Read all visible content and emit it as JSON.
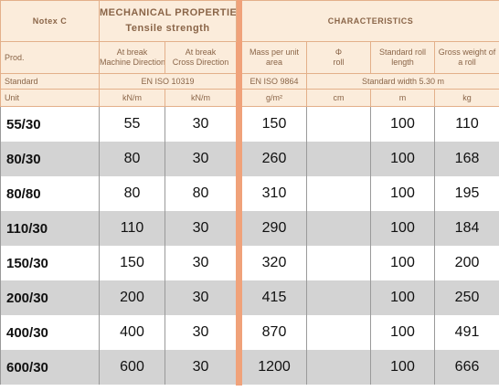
{
  "header": {
    "title": "Notex C",
    "mechanical": "MECHANICAL PROPERTIES",
    "tensile": "Tensile strength",
    "characteristics": "CHARACTERISTICS"
  },
  "columns": {
    "prod": "Prod.",
    "md": [
      "At break",
      "Machine Direction"
    ],
    "cd": [
      "At break",
      "Cross Direction"
    ],
    "mass": [
      "Mass per unit",
      "area"
    ],
    "phi": [
      "Φ",
      "roll"
    ],
    "length": [
      "Standard roll",
      "length"
    ],
    "weight": [
      "Gross weight of",
      "a roll"
    ]
  },
  "standard": {
    "label": "Standard",
    "tensile": "EN ISO 10319",
    "mass": "EN ISO 9864",
    "width": "Standard width 5.30 m"
  },
  "unit": {
    "label": "Unit",
    "md": "kN/m",
    "cd": "kN/m",
    "mass": "g/m²",
    "phi": "cm",
    "length": "m",
    "weight": "kg"
  },
  "rows": [
    {
      "prod": "55/30",
      "md": "55",
      "cd": "30",
      "mass": "150",
      "length": "100",
      "weight": "110"
    },
    {
      "prod": "80/30",
      "md": "80",
      "cd": "30",
      "mass": "260",
      "length": "100",
      "weight": "168"
    },
    {
      "prod": "80/80",
      "md": "80",
      "cd": "80",
      "mass": "310",
      "length": "100",
      "weight": "195"
    },
    {
      "prod": "110/30",
      "md": "110",
      "cd": "30",
      "mass": "290",
      "length": "100",
      "weight": "184"
    },
    {
      "prod": "150/30",
      "md": "150",
      "cd": "30",
      "mass": "320",
      "length": "100",
      "weight": "200"
    },
    {
      "prod": "200/30",
      "md": "200",
      "cd": "30",
      "mass": "415",
      "length": "100",
      "weight": "250"
    },
    {
      "prod": "400/30",
      "md": "400",
      "cd": "30",
      "mass": "870",
      "length": "100",
      "weight": "491"
    },
    {
      "prod": "600/30",
      "md": "600",
      "cd": "30",
      "mass": "1200",
      "length": "100",
      "weight": "666"
    }
  ]
}
